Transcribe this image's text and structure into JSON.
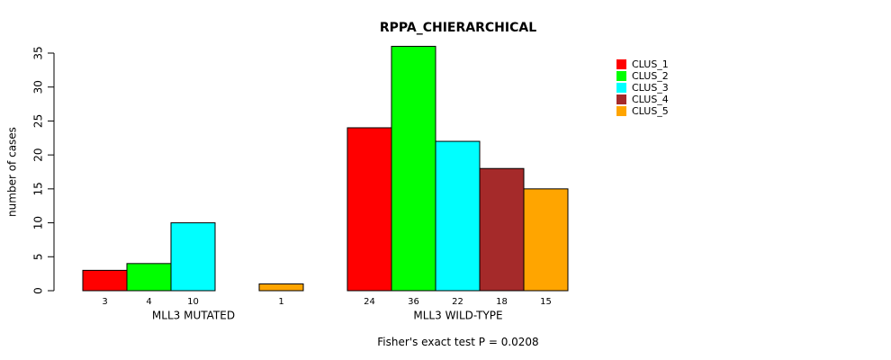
{
  "chart_data": {
    "type": "bar",
    "title": "RPPA_CHIERARCHICAL",
    "xlabel": "",
    "ylabel": "number of cases",
    "ylim": [
      0,
      35
    ],
    "yticks": [
      0,
      5,
      10,
      15,
      20,
      25,
      30,
      35
    ],
    "groups": [
      "MLL3 MUTATED",
      "MLL3 WILD-TYPE"
    ],
    "series": [
      {
        "name": "CLUS_1",
        "color": "#ff0000",
        "values": [
          3,
          24
        ]
      },
      {
        "name": "CLUS_2",
        "color": "#00ff00",
        "values": [
          4,
          36
        ]
      },
      {
        "name": "CLUS_3",
        "color": "#00ffff",
        "values": [
          10,
          22
        ]
      },
      {
        "name": "CLUS_4",
        "color": "#a52a2a",
        "values": [
          0,
          18
        ]
      },
      {
        "name": "CLUS_5",
        "color": "#ffa500",
        "values": [
          1,
          15
        ]
      }
    ],
    "count_labels": [
      [
        "3",
        "4",
        "10",
        "",
        "1"
      ],
      [
        "24",
        "36",
        "22",
        "18",
        "15"
      ]
    ],
    "legend_position": "top-right",
    "footnote": "Fisher's exact test P = 0.0208"
  }
}
